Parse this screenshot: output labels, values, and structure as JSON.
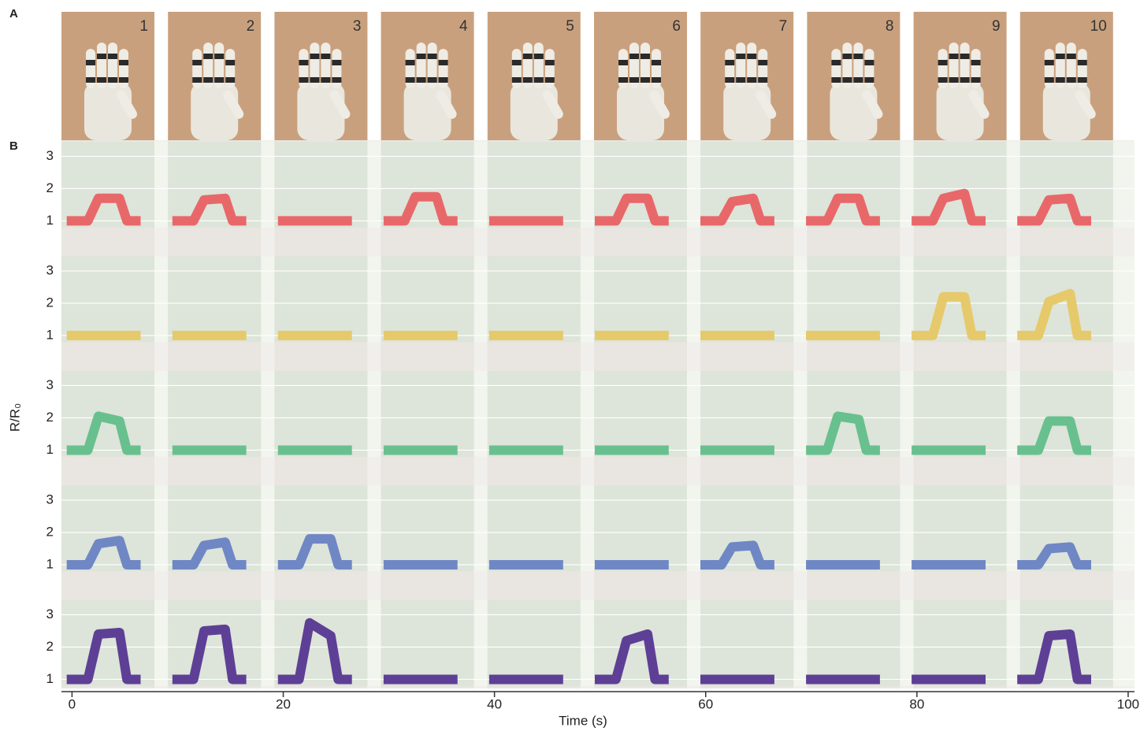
{
  "panel_labels": [
    "A",
    "B"
  ],
  "chart_data": {
    "type": "line",
    "gesture_labels": [
      "1",
      "2",
      "3",
      "4",
      "5",
      "6",
      "7",
      "8",
      "9",
      "10"
    ],
    "xlabel": "Time (s)",
    "ylabel": "R/R₀",
    "xlim": [
      -1,
      100.6
    ],
    "xticks": [
      0,
      20,
      40,
      60,
      80,
      100
    ],
    "ylim": [
      0.8,
      3.45
    ],
    "yticks": [
      1,
      2,
      3
    ],
    "x": [
      -0.5,
      1.5,
      2.5,
      4.5,
      5.2,
      6.5,
      8,
      9.5,
      11.5,
      12.5,
      14.5,
      15.2,
      16.5,
      18,
      19.5,
      21.5,
      22.5,
      24.5,
      25.2,
      26.5,
      28,
      29.5,
      31.5,
      32.5,
      34.5,
      35.2,
      36.5,
      38,
      39.5,
      41.5,
      42.5,
      44.5,
      45.2,
      46.5,
      48,
      49.5,
      51.5,
      52.5,
      54.5,
      55.2,
      56.5,
      58,
      59.5,
      61.5,
      62.5,
      64.5,
      65.2,
      66.5,
      68,
      69.5,
      71.5,
      72.5,
      74.5,
      75.2,
      76.5,
      78,
      79.5,
      81.5,
      82.5,
      84.5,
      85.2,
      86.5,
      88,
      89.5,
      91.5,
      92.5,
      94.5,
      95.2,
      96.5
    ],
    "series": [
      {
        "color": "#e8686a",
        "values": [
          1,
          1,
          1.7,
          1.7,
          1,
          1,
          null,
          1,
          1,
          1.65,
          1.7,
          1,
          1,
          null,
          1,
          1,
          1,
          1,
          1,
          1,
          null,
          1,
          1,
          1.75,
          1.75,
          1,
          1,
          null,
          1,
          1,
          1,
          1,
          1,
          1,
          null,
          1,
          1,
          1.7,
          1.7,
          1,
          1,
          null,
          1,
          1,
          1.6,
          1.7,
          1,
          1,
          null,
          1,
          1,
          1.7,
          1.7,
          1,
          1,
          null,
          1,
          1,
          1.7,
          1.85,
          1,
          1,
          null,
          1,
          1,
          1.65,
          1.7,
          1,
          1
        ]
      },
      {
        "color": "#e6c96a",
        "values": [
          1,
          1,
          1,
          1,
          1,
          1,
          null,
          1,
          1,
          1,
          1,
          1,
          1,
          null,
          1,
          1,
          1,
          1,
          1,
          1,
          null,
          1,
          1,
          1,
          1,
          1,
          1,
          null,
          1,
          1,
          1,
          1,
          1,
          1,
          null,
          1,
          1,
          1,
          1,
          1,
          1,
          null,
          1,
          1,
          1,
          1,
          1,
          1,
          null,
          1,
          1,
          1,
          1,
          1,
          1,
          null,
          1,
          1,
          2.2,
          2.2,
          1,
          1,
          null,
          1,
          1,
          2.05,
          2.3,
          1,
          1
        ]
      },
      {
        "color": "#68c08e",
        "values": [
          1,
          1,
          2.05,
          1.9,
          1,
          1,
          null,
          1,
          1,
          1,
          1,
          1,
          1,
          null,
          1,
          1,
          1,
          1,
          1,
          1,
          null,
          1,
          1,
          1,
          1,
          1,
          1,
          null,
          1,
          1,
          1,
          1,
          1,
          1,
          null,
          1,
          1,
          1,
          1,
          1,
          1,
          null,
          1,
          1,
          1,
          1,
          1,
          1,
          null,
          1,
          1,
          2.05,
          1.95,
          1,
          1,
          null,
          1,
          1,
          1,
          1,
          1,
          1,
          null,
          1,
          1,
          1.9,
          1.9,
          1,
          1
        ]
      },
      {
        "color": "#6f87c4",
        "values": [
          1,
          1,
          1.65,
          1.75,
          1,
          1,
          null,
          1,
          1,
          1.6,
          1.7,
          1,
          1,
          null,
          1,
          1,
          1.8,
          1.8,
          1,
          1,
          null,
          1,
          1,
          1,
          1,
          1,
          1,
          null,
          1,
          1,
          1,
          1,
          1,
          1,
          null,
          1,
          1,
          1,
          1,
          1,
          1,
          null,
          1,
          1,
          1.55,
          1.6,
          1,
          1,
          null,
          1,
          1,
          1,
          1,
          1,
          1,
          null,
          1,
          1,
          1,
          1,
          1,
          1,
          null,
          1,
          1,
          1.5,
          1.55,
          1,
          1
        ]
      },
      {
        "color": "#5e3f96",
        "values": [
          1,
          1,
          2.4,
          2.45,
          1,
          1,
          null,
          1,
          1,
          2.5,
          2.55,
          1,
          1,
          null,
          1,
          1,
          2.75,
          2.35,
          1,
          1,
          null,
          1,
          1,
          1,
          1,
          1,
          1,
          null,
          1,
          1,
          1,
          1,
          1,
          1,
          null,
          1,
          1,
          2.2,
          2.4,
          1,
          1,
          null,
          1,
          1,
          1,
          1,
          1,
          1,
          null,
          1,
          1,
          1,
          1,
          1,
          1,
          null,
          1,
          1,
          1,
          1,
          1,
          1,
          null,
          1,
          1,
          2.35,
          2.4,
          1,
          1
        ]
      }
    ]
  }
}
